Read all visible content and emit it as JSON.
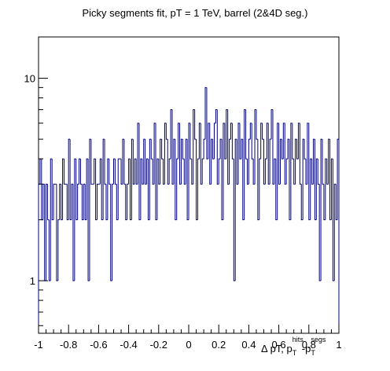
{
  "chart_data": {
    "type": "bar",
    "style": "histogram-step",
    "title": "Picky segments fit, pT = 1 TeV, barrel (2&4D seg.)",
    "xlabel": {
      "prefix": "Δ pT, p",
      "sub1": "T",
      "sup1": "hits",
      "mid": "-p",
      "sub2": "T",
      "sup2": "segs"
    },
    "ylabel": "",
    "xlim": [
      -1,
      1
    ],
    "ylim": [
      0.55,
      16
    ],
    "yscale": "log",
    "xticks": [
      -1,
      -0.8,
      -0.6,
      -0.4,
      -0.2,
      0,
      0.2,
      0.4,
      0.6,
      0.8,
      1
    ],
    "xtick_labels": [
      "-1",
      "-0.8",
      "-0.6",
      "-0.4",
      "-0.2",
      "0",
      "0.2",
      "0.4",
      "0.6",
      "0.8",
      "1"
    ],
    "ytick_labels": [
      {
        "value": 1,
        "label": "1"
      },
      {
        "value": 10,
        "label": "10"
      }
    ],
    "grid": false,
    "line_color": "#00007f",
    "bin_width": 0.01,
    "values": [
      3,
      4,
      2,
      3,
      1,
      3,
      2,
      1,
      4,
      2,
      3,
      3,
      1,
      2,
      3,
      2,
      4,
      3,
      3,
      2,
      5,
      2,
      3,
      1,
      4,
      2,
      3,
      4,
      3,
      2,
      3,
      2,
      4,
      1,
      5,
      3,
      3,
      4,
      2,
      3,
      3,
      4,
      2,
      5,
      3,
      2,
      4,
      3,
      1,
      3,
      4,
      3,
      2,
      4,
      4,
      3,
      5,
      3,
      2,
      3,
      4,
      2,
      5,
      3,
      4,
      3,
      6,
      2,
      4,
      3,
      5,
      3,
      4,
      2,
      5,
      4,
      3,
      6,
      2,
      4,
      3,
      5,
      4,
      3,
      6,
      5,
      3,
      4,
      7,
      3,
      5,
      2,
      4,
      6,
      3,
      5,
      4,
      3,
      5,
      2,
      6,
      4,
      3,
      7,
      5,
      2,
      4,
      6,
      3,
      4,
      5,
      9,
      4,
      6,
      3,
      5,
      4,
      6,
      7,
      3,
      4,
      5,
      2,
      6,
      4,
      7,
      3,
      5,
      6,
      4,
      1,
      5,
      3,
      6,
      4,
      5,
      2,
      7,
      4,
      3,
      5,
      6,
      4,
      3,
      7,
      5,
      2,
      4,
      6,
      5,
      3,
      4,
      6,
      3,
      5,
      7,
      3,
      4,
      2,
      6,
      3,
      5,
      4,
      6,
      3,
      4,
      5,
      2,
      6,
      4,
      3,
      5,
      4,
      6,
      3,
      2,
      5,
      4,
      3,
      6,
      2,
      4,
      3,
      5,
      2,
      4,
      3,
      1,
      5,
      3,
      2,
      4,
      3,
      5,
      2,
      4,
      1,
      3,
      2,
      5
    ]
  }
}
